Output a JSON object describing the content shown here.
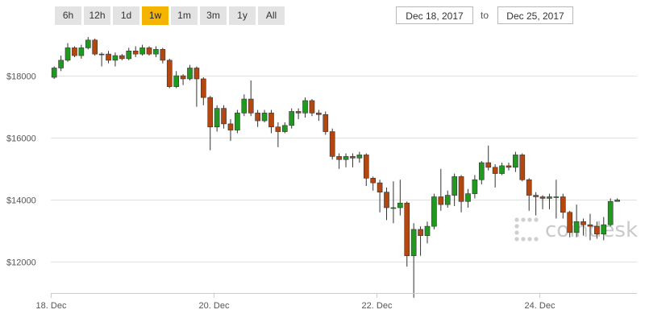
{
  "range_buttons": [
    {
      "label": "6h"
    },
    {
      "label": "12h"
    },
    {
      "label": "1d"
    },
    {
      "label": "1w",
      "active": true
    },
    {
      "label": "1m"
    },
    {
      "label": "3m"
    },
    {
      "label": "1y"
    },
    {
      "label": "All"
    }
  ],
  "date_range": {
    "from": "Dec 18, 2017",
    "to_label": "to",
    "to": "Dec 25, 2017"
  },
  "watermark": {
    "text": "coindesk"
  },
  "colors": {
    "up": "#1f9a1f",
    "down": "#b3470f",
    "active_button": "#f5b400",
    "grid": "#e0e0e0"
  },
  "chart_data": {
    "type": "candlestick",
    "grid": true,
    "legend": "none",
    "ylim": [
      11000,
      19300
    ],
    "xlim": [
      0,
      7.2
    ],
    "y_ticks": [
      {
        "value": 12000,
        "label": "$12000"
      },
      {
        "value": 14000,
        "label": "$14000"
      },
      {
        "value": 16000,
        "label": "$16000"
      },
      {
        "value": 18000,
        "label": "$18000"
      }
    ],
    "x_ticks": [
      {
        "value": 0,
        "label": "18. Dec"
      },
      {
        "value": 2,
        "label": "20. Dec"
      },
      {
        "value": 4,
        "label": "22. Dec"
      },
      {
        "value": 6,
        "label": "24. Dec"
      }
    ],
    "candles_per_day": 12,
    "candles": [
      [
        17950,
        18250,
        17900,
        18300
      ],
      [
        18250,
        18500,
        18150,
        18650
      ],
      [
        18500,
        18900,
        18450,
        19050
      ],
      [
        18900,
        18650,
        18600,
        18950
      ],
      [
        18650,
        18900,
        18550,
        19000
      ],
      [
        18900,
        19150,
        18850,
        19250
      ],
      [
        19150,
        18700,
        18650,
        19200
      ],
      [
        18700,
        18700,
        18300,
        18750
      ],
      [
        18700,
        18500,
        18400,
        18800
      ],
      [
        18500,
        18650,
        18300,
        18750
      ],
      [
        18650,
        18550,
        18500,
        18700
      ],
      [
        18550,
        18800,
        18500,
        18900
      ],
      [
        18800,
        18700,
        18600,
        18950
      ],
      [
        18700,
        18900,
        18650,
        19000
      ],
      [
        18900,
        18700,
        18650,
        18950
      ],
      [
        18700,
        18850,
        18600,
        18950
      ],
      [
        18850,
        18500,
        18400,
        18900
      ],
      [
        18500,
        17650,
        17600,
        18550
      ],
      [
        17650,
        18000,
        17600,
        18150
      ],
      [
        18000,
        17900,
        17700,
        18050
      ],
      [
        17900,
        18250,
        17850,
        18350
      ],
      [
        18250,
        17900,
        17000,
        18300
      ],
      [
        17900,
        17300,
        17050,
        17950
      ],
      [
        17300,
        16350,
        15600,
        17350
      ],
      [
        16350,
        16950,
        16200,
        17050
      ],
      [
        16950,
        16450,
        16300,
        17050
      ],
      [
        16450,
        16250,
        15900,
        16600
      ],
      [
        16250,
        16800,
        16150,
        16900
      ],
      [
        16800,
        17250,
        16700,
        17400
      ],
      [
        17250,
        16800,
        16700,
        17850
      ],
      [
        16800,
        16550,
        16350,
        16900
      ],
      [
        16550,
        16800,
        16500,
        16900
      ],
      [
        16800,
        16350,
        16150,
        16900
      ],
      [
        16350,
        16200,
        15700,
        16500
      ],
      [
        16200,
        16400,
        16150,
        16500
      ],
      [
        16400,
        16850,
        16300,
        16950
      ],
      [
        16850,
        16800,
        16600,
        16950
      ],
      [
        16800,
        17200,
        16650,
        17300
      ],
      [
        17200,
        16800,
        16700,
        17250
      ],
      [
        16800,
        16750,
        16550,
        16900
      ],
      [
        16750,
        16200,
        16100,
        16850
      ],
      [
        16200,
        15400,
        15300,
        16300
      ],
      [
        15400,
        15300,
        15000,
        15500
      ],
      [
        15300,
        15400,
        15050,
        15500
      ],
      [
        15400,
        15350,
        15050,
        15500
      ],
      [
        15350,
        15450,
        15200,
        15550
      ],
      [
        15450,
        14700,
        14450,
        15500
      ],
      [
        14700,
        14550,
        14300,
        14750
      ],
      [
        14550,
        14250,
        13600,
        14650
      ],
      [
        14250,
        13750,
        13350,
        14400
      ],
      [
        13750,
        13750,
        13250,
        14600
      ],
      [
        13750,
        13900,
        13500,
        14650
      ],
      [
        13900,
        12200,
        11850,
        13950
      ],
      [
        12200,
        13050,
        10850,
        13250
      ],
      [
        13050,
        12850,
        12200,
        13150
      ],
      [
        12850,
        13150,
        12600,
        13300
      ],
      [
        13150,
        14100,
        13050,
        14200
      ],
      [
        14100,
        13850,
        13650,
        15000
      ],
      [
        13850,
        14150,
        13750,
        14300
      ],
      [
        14150,
        14750,
        13800,
        14850
      ],
      [
        14750,
        13950,
        13600,
        14800
      ],
      [
        13950,
        14200,
        13750,
        14350
      ],
      [
        14200,
        14650,
        14050,
        14800
      ],
      [
        14650,
        15200,
        14500,
        15250
      ],
      [
        15200,
        15050,
        14950,
        15750
      ],
      [
        15050,
        14850,
        14400,
        15150
      ],
      [
        14850,
        15100,
        14800,
        15200
      ],
      [
        15100,
        15050,
        14950,
        15200
      ],
      [
        15050,
        15450,
        14900,
        15550
      ],
      [
        15450,
        14650,
        14600,
        15500
      ],
      [
        14650,
        14150,
        13650,
        14700
      ],
      [
        14150,
        14100,
        13500,
        14250
      ],
      [
        14100,
        14050,
        13700,
        14150
      ],
      [
        14050,
        14100,
        13700,
        14200
      ],
      [
        14100,
        14100,
        13400,
        14650
      ],
      [
        14100,
        13600,
        13400,
        14200
      ],
      [
        13600,
        12950,
        12800,
        13650
      ],
      [
        12950,
        13300,
        12800,
        13850
      ],
      [
        13300,
        13200,
        12850,
        13400
      ],
      [
        13200,
        13150,
        12700,
        13550
      ],
      [
        13150,
        12900,
        12750,
        13300
      ],
      [
        12900,
        13200,
        12700,
        13450
      ],
      [
        13200,
        13950,
        13150,
        14050
      ],
      [
        13950,
        14000,
        13950,
        14050
      ]
    ]
  }
}
